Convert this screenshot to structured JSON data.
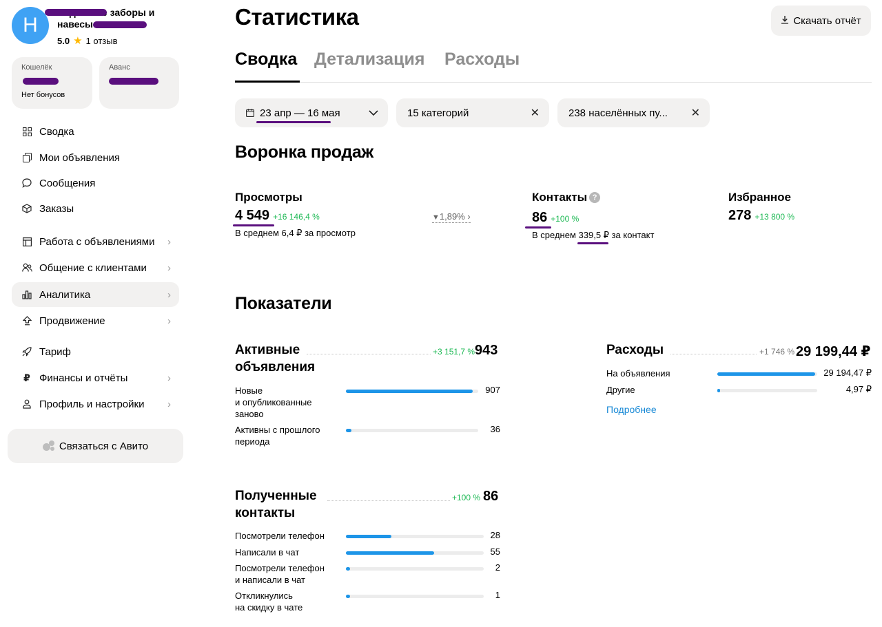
{
  "sidebar": {
    "avatar_letter": "Н",
    "shop_name": "Надёжные заборы и навесы",
    "rating": "5.0",
    "reviews": "1 отзыв",
    "wallet": {
      "label": "Кошелёк",
      "sub": "Нет бонусов"
    },
    "advance": {
      "label": "Аванс"
    },
    "nav": [
      {
        "label": "Сводка",
        "icon": "grid-icon"
      },
      {
        "label": "Мои объявления",
        "icon": "copy-icon"
      },
      {
        "label": "Сообщения",
        "icon": "chat-icon"
      },
      {
        "label": "Заказы",
        "icon": "box-icon"
      },
      {
        "label": "Работа с объявлениями",
        "icon": "layout-icon"
      },
      {
        "label": "Общение с клиентами",
        "icon": "people-icon"
      },
      {
        "label": "Аналитика",
        "icon": "bar-chart-icon"
      },
      {
        "label": "Продвижение",
        "icon": "arrow-up-icon"
      },
      {
        "label": "Тариф",
        "icon": "rocket-icon"
      },
      {
        "label": "Финансы и отчёты",
        "icon": "ruble-icon"
      },
      {
        "label": "Профиль и настройки",
        "icon": "user-icon"
      }
    ],
    "contact_button": "Связаться с Авито"
  },
  "header": {
    "title": "Статистика",
    "download_label": "Скачать отчёт"
  },
  "tabs": [
    "Сводка",
    "Детализация",
    "Расходы"
  ],
  "filters": {
    "period": "23 апр — 16 мая",
    "categories": "15 категорий",
    "locations": "238 населённых пу..."
  },
  "funnel": {
    "title": "Воронка продаж",
    "views": {
      "label": "Просмотры",
      "value": "4 549",
      "delta": "+16 146,4 %",
      "sub": "В среднем 6,4 ₽ за просмотр"
    },
    "conversion": "1,89%",
    "contacts": {
      "label": "Контакты",
      "value": "86",
      "delta": "+100 %",
      "sub_prefix": "В среднем",
      "sub_value": "339,5 ₽",
      "sub_suffix": "за контакт"
    },
    "favorites": {
      "label": "Избранное",
      "value": "278",
      "delta": "+13 800 %"
    }
  },
  "indicators": {
    "title": "Показатели",
    "active_ads": {
      "title_line1": "Активные",
      "title_line2": "объявления",
      "delta": "+3 151,7 %",
      "total": "943",
      "rows": [
        {
          "label_line1": "Новые",
          "label_line2": "и опубликованные",
          "label_line3": "заново",
          "value": "907",
          "fraction": 0.96
        },
        {
          "label_line1": "Активны с прошлого",
          "label_line2": "периода",
          "value": "36",
          "fraction": 0.04
        }
      ]
    },
    "expenses": {
      "title": "Расходы",
      "delta": "+1 746 %",
      "total": "29 199,44 ₽",
      "rows": [
        {
          "label": "На объявления",
          "value": "29 194,47 ₽",
          "fraction": 0.98
        },
        {
          "label": "Другие",
          "value": "4,97 ₽",
          "fraction": 0.03
        }
      ],
      "more_link": "Подробнее"
    },
    "contacts_received": {
      "title_line1": "Полученные",
      "title_line2": "контакты",
      "delta": "+100 %",
      "total": "86",
      "rows": [
        {
          "label_line1": "Посмотрели телефон",
          "value": "28",
          "fraction": 0.33
        },
        {
          "label_line1": "Написали в чат",
          "value": "55",
          "fraction": 0.64
        },
        {
          "label_line1": "Посмотрели телефон",
          "label_line2": "и написали в чат",
          "value": "2",
          "fraction": 0.03
        },
        {
          "label_line1": "Откликнулись",
          "label_line2": "на скидку в чате",
          "value": "1",
          "fraction": 0.03
        }
      ]
    }
  }
}
